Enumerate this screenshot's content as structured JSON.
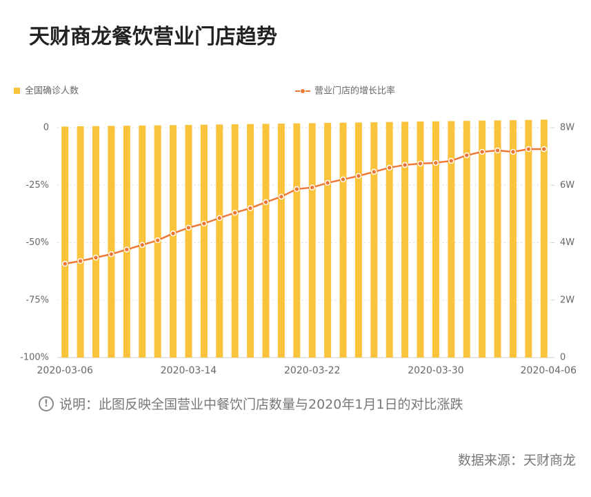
{
  "chart_data": {
    "type": "bar-line",
    "title": "天财商龙餐饮营业门店趋势",
    "note": "说明：此图反映全国营业中餐饮门店数量与2020年1月1日的对比涨跌",
    "source": "数据来源：天财商龙",
    "x": [
      "2020-03-06",
      "2020-03-07",
      "2020-03-08",
      "2020-03-09",
      "2020-03-10",
      "2020-03-11",
      "2020-03-12",
      "2020-03-13",
      "2020-03-14",
      "2020-03-15",
      "2020-03-16",
      "2020-03-17",
      "2020-03-18",
      "2020-03-19",
      "2020-03-20",
      "2020-03-21",
      "2020-03-22",
      "2020-03-23",
      "2020-03-24",
      "2020-03-25",
      "2020-03-26",
      "2020-03-27",
      "2020-03-28",
      "2020-03-29",
      "2020-03-30",
      "2020-03-31",
      "2020-04-01",
      "2020-04-02",
      "2020-04-03",
      "2020-04-04",
      "2020-04-05",
      "2020-04-06"
    ],
    "xticks": [
      "2020-03-06",
      "2020-03-14",
      "2020-03-22",
      "2020-03-30",
      "2020-04-06"
    ],
    "series": [
      {
        "name": "全国确诊人数",
        "type": "bar",
        "axis": "y2",
        "color": "#f9c33c",
        "values": [
          80400,
          80480,
          80550,
          80620,
          80690,
          80760,
          80830,
          80900,
          80970,
          81040,
          81110,
          81180,
          81260,
          81340,
          81420,
          81500,
          81580,
          81660,
          81740,
          81820,
          81900,
          81980,
          82060,
          82140,
          82220,
          82300,
          82380,
          82460,
          82540,
          82620,
          82700,
          82800
        ]
      },
      {
        "name": "营业门店的增长比率",
        "type": "line",
        "color": "#ee7733",
        "values": [
          -59.2,
          -58,
          -56.5,
          -55,
          -53,
          -51,
          -49,
          -46,
          -43.5,
          -41.7,
          -39.3,
          -37,
          -35,
          -32.4,
          -30,
          -26.7,
          -26,
          -24,
          -22.5,
          -21,
          -19.2,
          -17.4,
          -16.2,
          -15.6,
          -15.3,
          -14.4,
          -12,
          -10.5,
          -9.9,
          -10.5,
          -9.3,
          -9.3
        ]
      }
    ],
    "ylim": [
      -100,
      0
    ],
    "yticks": [
      0,
      {
        "value": -25,
        "label": "-25%"
      },
      {
        "value": -50,
        "label": "-50%"
      },
      {
        "value": -75,
        "label": "-75%"
      },
      {
        "value": -100,
        "label": "-100%"
      }
    ],
    "y2lim": [
      0,
      80000
    ],
    "y2ticks": [
      0,
      {
        "value": 20000,
        "label": "2W"
      },
      {
        "value": 40000,
        "label": "4W"
      },
      {
        "value": 60000,
        "label": "6W"
      },
      {
        "value": 80000,
        "label": "8W"
      }
    ],
    "grid": true
  }
}
